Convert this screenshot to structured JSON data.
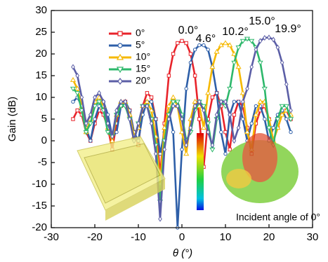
{
  "chart_data": {
    "type": "line",
    "x_label": "θ (°)",
    "y_label": "Gain (dB)",
    "x": [
      -25,
      -24,
      -23,
      -22,
      -21,
      -20,
      -19,
      -18,
      -17,
      -16,
      -15,
      -14,
      -13,
      -12,
      -11,
      -10,
      -9,
      -8,
      -7,
      -6,
      -5,
      -4,
      -3,
      -2,
      -1,
      0,
      1,
      2,
      3,
      4,
      5,
      6,
      7,
      8,
      9,
      10,
      11,
      12,
      13,
      14,
      15,
      16,
      17,
      18,
      19,
      20,
      21,
      22,
      23,
      24,
      25
    ],
    "series": [
      {
        "name": "0°",
        "color": "#e8232a",
        "marker": "square",
        "values": [
          5,
          7,
          6,
          2,
          0,
          4,
          7,
          6,
          3,
          -2,
          4,
          8,
          9,
          7,
          2,
          -1,
          8,
          11,
          10,
          5,
          -8,
          4,
          15,
          20,
          22.5,
          23,
          22.5,
          20,
          15,
          5,
          -6,
          5,
          10,
          11,
          8,
          2,
          -2,
          6,
          9,
          8,
          3,
          -3,
          4,
          7,
          8,
          5,
          0,
          3,
          6,
          7,
          5
        ]
      },
      {
        "name": "5°",
        "color": "#2e5fa8",
        "marker": "circle",
        "values": [
          9,
          10,
          8,
          3,
          0,
          5,
          8,
          9,
          6,
          1,
          2,
          8,
          9,
          7,
          2,
          0,
          6,
          9,
          9,
          5,
          -3,
          2,
          7,
          2,
          -20,
          -2,
          12,
          18,
          21,
          22,
          22,
          21,
          17,
          11,
          2,
          -3,
          6,
          9,
          9,
          5,
          0,
          4,
          8,
          8,
          5,
          0,
          3,
          6,
          7,
          5,
          2
        ]
      },
      {
        "name": "10°",
        "color": "#f5b800",
        "marker": "triangle-up",
        "values": [
          14,
          12,
          8,
          2,
          5,
          9,
          10,
          8,
          3,
          0,
          6,
          9,
          9,
          6,
          1,
          3,
          8,
          9,
          7,
          1,
          -10,
          3,
          8,
          10,
          8,
          2,
          -3,
          5,
          9,
          8,
          3,
          11,
          17,
          20.5,
          22,
          22.5,
          22,
          20,
          17,
          11,
          2,
          -2,
          6,
          9,
          9,
          5,
          0,
          3,
          6,
          7,
          6
        ]
      },
      {
        "name": "15°",
        "color": "#2db86b",
        "marker": "triangle-down",
        "values": [
          12,
          11,
          7,
          2,
          4,
          8,
          9,
          7,
          2,
          1,
          6,
          8,
          8,
          5,
          0,
          4,
          8,
          8,
          5,
          -1,
          -14,
          0,
          6,
          9,
          9,
          6,
          0,
          2,
          7,
          9,
          8,
          4,
          -2,
          5,
          9,
          8,
          12,
          18,
          21.5,
          23,
          23.5,
          23,
          21.5,
          18,
          12,
          3,
          -1,
          5,
          8,
          8,
          5
        ]
      },
      {
        "name": "20°",
        "color": "#5b5ea6",
        "marker": "diamond",
        "values": [
          17,
          15,
          10,
          4,
          6,
          10,
          11,
          9,
          4,
          1,
          7,
          9,
          9,
          5,
          0,
          4,
          8,
          8,
          4,
          -3,
          -18,
          -2,
          5,
          8,
          8,
          5,
          -1,
          3,
          8,
          9,
          7,
          2,
          -1,
          6,
          9,
          9,
          6,
          0,
          3,
          9,
          12,
          17,
          21,
          23,
          23.7,
          23.8,
          23.3,
          21.5,
          18,
          13,
          7
        ]
      }
    ],
    "annotations": [
      "0.0°",
      "4.6°",
      "10.2°",
      "15.0°",
      "19.9°"
    ],
    "inset_label": "Incident angle of 0°",
    "xlim": [
      -30,
      30
    ],
    "xticks": [
      -30,
      -20,
      -10,
      0,
      10,
      20,
      30
    ],
    "ylim": [
      -20,
      30
    ],
    "yticks": [
      -20,
      -15,
      -10,
      -5,
      0,
      5,
      10,
      15,
      20,
      25,
      30
    ],
    "legend": "upper-left"
  }
}
